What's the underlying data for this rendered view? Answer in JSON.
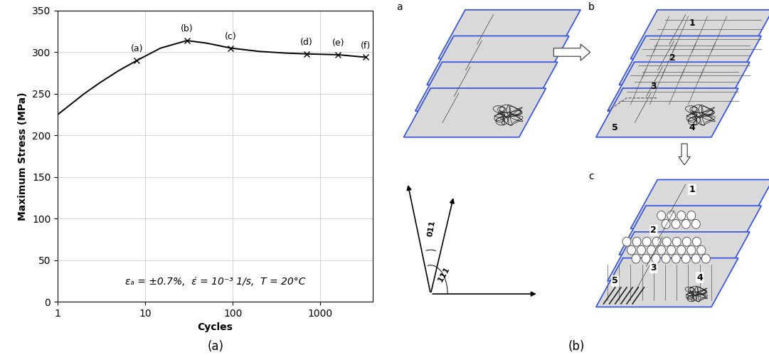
{
  "chart_data": {
    "type": "line",
    "x_label": "Cycles",
    "y_label": "Maximum Stress (MPa)",
    "log": "x",
    "grid": true,
    "xlim": [
      1,
      4000
    ],
    "xticks": [
      1,
      10,
      100,
      1000
    ],
    "ylim": [
      0,
      350
    ],
    "yticks": [
      0,
      50,
      100,
      150,
      200,
      250,
      300,
      350
    ],
    "x": [
      1,
      2,
      3,
      5,
      8,
      15,
      30,
      50,
      95,
      200,
      400,
      700,
      1600,
      3300
    ],
    "series": [
      {
        "color": "#000000",
        "marker": "x",
        "line_style": "solid",
        "values": [
          225,
          250,
          263,
          278,
          290,
          305,
          314,
          311,
          305,
          301,
          299,
          298,
          297,
          294
        ]
      }
    ],
    "points": [
      {
        "label": "(a)",
        "x": 8,
        "y": 290
      },
      {
        "label": "(b)",
        "x": 30,
        "y": 314
      },
      {
        "label": "(c)",
        "x": 95,
        "y": 305
      },
      {
        "label": "(d)",
        "x": 700,
        "y": 298
      },
      {
        "label": "(e)",
        "x": 1600,
        "y": 297
      },
      {
        "label": "(f)",
        "x": 3300,
        "y": 294
      }
    ],
    "annotation": "εₐ = ±0.7%,  ε̇ = 10⁻³ 1/s,  T = 20°C",
    "caption": "(a)"
  },
  "diagram": {
    "caption": "(b)",
    "panels": [
      {
        "label": "a",
        "numbers": []
      },
      {
        "label": "b",
        "numbers": [
          "1",
          "2",
          "3",
          "4",
          "5"
        ]
      },
      {
        "label": "c",
        "numbers": [
          "1",
          "2",
          "3",
          "4",
          "5"
        ]
      }
    ],
    "angle_labels": [
      "011",
      "111"
    ]
  }
}
